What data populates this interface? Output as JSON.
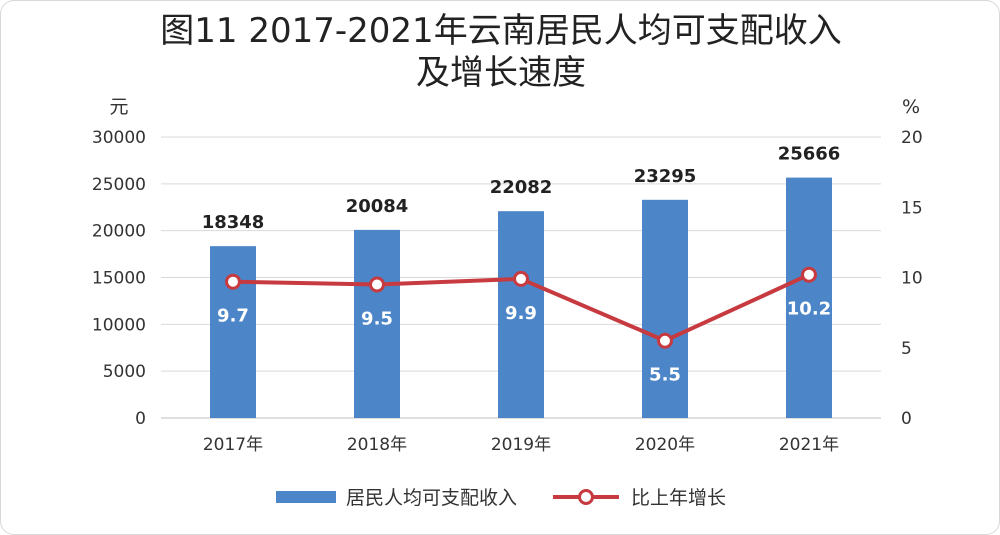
{
  "title_line1": "图11  2017-2021年云南居民人均可支配收入",
  "title_line2": "及增长速度",
  "chart_data": {
    "type": "bar",
    "title": "图11  2017-2021年云南居民人均可支配收入及增长速度",
    "categories": [
      "2017年",
      "2018年",
      "2019年",
      "2020年",
      "2021年"
    ],
    "y_left_unit": "元",
    "y_right_unit": "%",
    "y_left_range": [
      0,
      30000
    ],
    "y_left_ticks": [
      0,
      5000,
      10000,
      15000,
      20000,
      25000,
      30000
    ],
    "y_right_range": [
      0,
      20
    ],
    "y_right_ticks": [
      0,
      5,
      10,
      15,
      20
    ],
    "grid": true,
    "legend_position": "bottom",
    "series": [
      {
        "name": "居民人均可支配收入",
        "type": "bar",
        "axis": "left",
        "color": "#4c86c8",
        "values": [
          18348,
          20084,
          22082,
          23295,
          25666
        ],
        "labels": [
          "18348",
          "20084",
          "22082",
          "23295",
          "25666"
        ]
      },
      {
        "name": "比上年增长",
        "type": "line",
        "axis": "right",
        "color": "#c73a40",
        "values": [
          9.7,
          9.5,
          9.9,
          5.5,
          10.2
        ],
        "labels": [
          "9.7",
          "9.5",
          "9.9",
          "5.5",
          "10.2"
        ]
      }
    ]
  }
}
